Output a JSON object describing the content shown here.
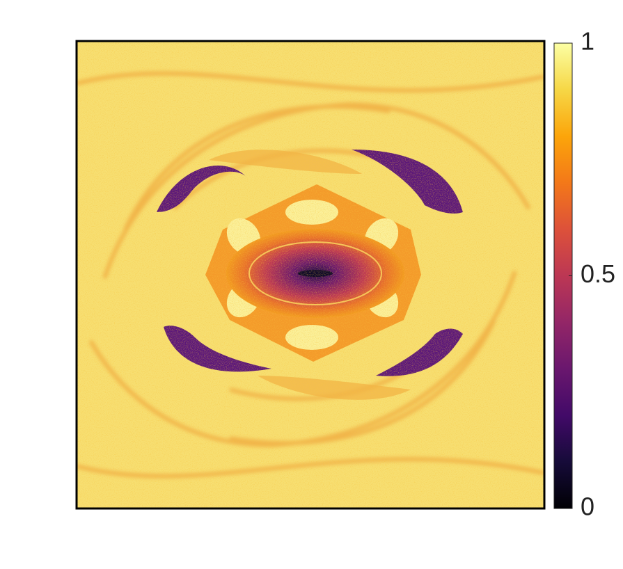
{
  "chart_data": {
    "type": "heatmap",
    "colormap": "inferno",
    "clim": [
      0,
      1
    ],
    "cticks": [
      0,
      0.5,
      1
    ]
  }
}
